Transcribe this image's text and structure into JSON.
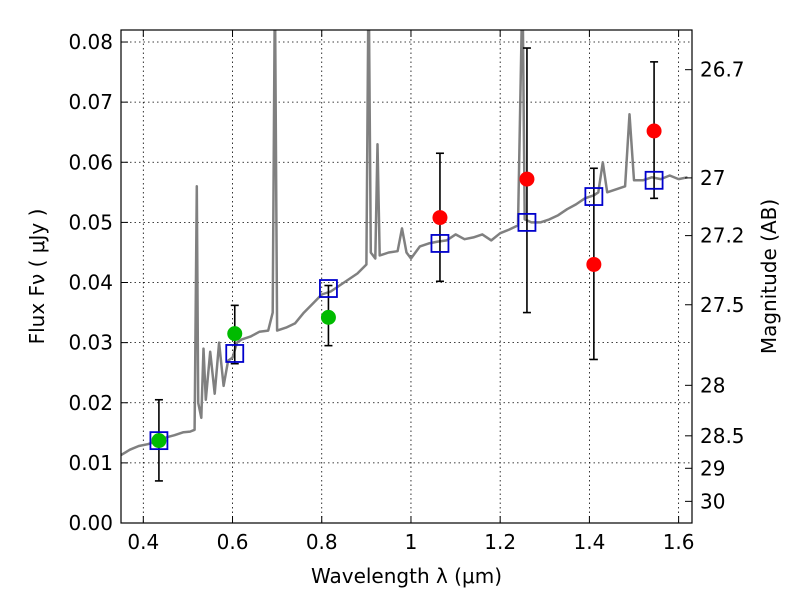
{
  "chart_data": {
    "type": "scatter",
    "title": "",
    "xlabel": "Wavelength  λ (μm)",
    "ylabel": "Flux  Fν  ( μJy )",
    "y2label": "Magnitude (AB)",
    "xlim": [
      0.35,
      1.63
    ],
    "ylim": [
      0.0,
      0.082
    ],
    "grid": true,
    "x_ticks": [
      0.4,
      0.6,
      0.8,
      1.0,
      1.2,
      1.4,
      1.6
    ],
    "x_tick_labels": [
      "0.4",
      "0.6",
      "0.8",
      "1",
      "1.2",
      "1.4",
      "1.6"
    ],
    "y_ticks": [
      0.0,
      0.01,
      0.02,
      0.03,
      0.04,
      0.05,
      0.06,
      0.07,
      0.08
    ],
    "y_tick_labels": [
      "0.00",
      "0.01",
      "0.02",
      "0.03",
      "0.04",
      "0.05",
      "0.06",
      "0.07",
      "0.08"
    ],
    "y2_ticks": [
      {
        "label": "26.7",
        "flux": 0.0754
      },
      {
        "label": "27",
        "flux": 0.0574
      },
      {
        "label": "27.2",
        "flux": 0.0478
      },
      {
        "label": "27.5",
        "flux": 0.0363
      },
      {
        "label": "28",
        "flux": 0.0229
      },
      {
        "label": "28.5",
        "flux": 0.0145
      },
      {
        "label": "29",
        "flux": 0.0091
      },
      {
        "label": "30",
        "flux": 0.0036
      }
    ],
    "colors": {
      "model": "#808080",
      "model_photometry": "#0000cc",
      "detected": "#00bb00",
      "upper_limit_like": "#ff0000",
      "errorbar": "#000000"
    },
    "series": [
      {
        "kind": "line",
        "points": [
          [
            0.35,
            0.0113
          ],
          [
            0.37,
            0.0122
          ],
          [
            0.39,
            0.0128
          ],
          [
            0.41,
            0.0131
          ],
          [
            0.43,
            0.0136
          ],
          [
            0.45,
            0.0142
          ],
          [
            0.47,
            0.0146
          ],
          [
            0.49,
            0.0151
          ],
          [
            0.505,
            0.0152
          ],
          [
            0.515,
            0.0155
          ],
          [
            0.52,
            0.056
          ],
          [
            0.523,
            0.02
          ],
          [
            0.53,
            0.0175
          ],
          [
            0.535,
            0.029
          ],
          [
            0.54,
            0.0205
          ],
          [
            0.55,
            0.0285
          ],
          [
            0.56,
            0.0215
          ],
          [
            0.57,
            0.03
          ],
          [
            0.58,
            0.0228
          ],
          [
            0.59,
            0.027
          ],
          [
            0.6,
            0.0275
          ],
          [
            0.61,
            0.03
          ],
          [
            0.62,
            0.0305
          ],
          [
            0.64,
            0.031
          ],
          [
            0.66,
            0.0318
          ],
          [
            0.68,
            0.032
          ],
          [
            0.69,
            0.035
          ],
          [
            0.695,
            0.09
          ],
          [
            0.7,
            0.032
          ],
          [
            0.72,
            0.0325
          ],
          [
            0.74,
            0.0332
          ],
          [
            0.76,
            0.035
          ],
          [
            0.78,
            0.0365
          ],
          [
            0.8,
            0.038
          ],
          [
            0.82,
            0.0385
          ],
          [
            0.84,
            0.0395
          ],
          [
            0.86,
            0.0405
          ],
          [
            0.88,
            0.0415
          ],
          [
            0.9,
            0.043
          ],
          [
            0.905,
            0.092
          ],
          [
            0.91,
            0.045
          ],
          [
            0.92,
            0.044
          ],
          [
            0.925,
            0.063
          ],
          [
            0.93,
            0.0445
          ],
          [
            0.95,
            0.045
          ],
          [
            0.97,
            0.0452
          ],
          [
            0.98,
            0.049
          ],
          [
            0.99,
            0.045
          ],
          [
            1.0,
            0.044
          ],
          [
            1.02,
            0.046
          ],
          [
            1.04,
            0.0465
          ],
          [
            1.06,
            0.0468
          ],
          [
            1.08,
            0.047
          ],
          [
            1.1,
            0.048
          ],
          [
            1.12,
            0.0472
          ],
          [
            1.14,
            0.0475
          ],
          [
            1.16,
            0.048
          ],
          [
            1.18,
            0.047
          ],
          [
            1.2,
            0.0482
          ],
          [
            1.22,
            0.0488
          ],
          [
            1.24,
            0.0495
          ],
          [
            1.25,
            0.09
          ],
          [
            1.255,
            0.0505
          ],
          [
            1.27,
            0.05
          ],
          [
            1.29,
            0.05
          ],
          [
            1.31,
            0.0505
          ],
          [
            1.33,
            0.0512
          ],
          [
            1.35,
            0.0522
          ],
          [
            1.37,
            0.053
          ],
          [
            1.39,
            0.054
          ],
          [
            1.41,
            0.0545
          ],
          [
            1.42,
            0.055
          ],
          [
            1.43,
            0.06
          ],
          [
            1.44,
            0.055
          ],
          [
            1.46,
            0.0555
          ],
          [
            1.48,
            0.056
          ],
          [
            1.49,
            0.068
          ],
          [
            1.5,
            0.057
          ],
          [
            1.52,
            0.057
          ],
          [
            1.54,
            0.0575
          ],
          [
            1.56,
            0.0572
          ],
          [
            1.58,
            0.0578
          ],
          [
            1.6,
            0.0572
          ],
          [
            1.62,
            0.0575
          ]
        ]
      },
      {
        "kind": "model_photometry",
        "points": [
          [
            0.435,
            0.0137
          ],
          [
            0.605,
            0.0282
          ],
          [
            0.815,
            0.039
          ],
          [
            1.065,
            0.0465
          ],
          [
            1.26,
            0.05
          ],
          [
            1.41,
            0.0543
          ],
          [
            1.545,
            0.057
          ]
        ]
      },
      {
        "kind": "detected",
        "points": [
          [
            0.435,
            0.0137
          ],
          [
            0.605,
            0.0315
          ],
          [
            0.815,
            0.0342
          ]
        ]
      },
      {
        "kind": "upper_limit_like",
        "points": [
          [
            1.065,
            0.0508
          ],
          [
            1.26,
            0.0572
          ],
          [
            1.41,
            0.043
          ],
          [
            1.545,
            0.0652
          ]
        ]
      },
      {
        "kind": "errorbars",
        "bars": [
          [
            0.435,
            0.007,
            0.0205
          ],
          [
            0.605,
            0.0265,
            0.0362
          ],
          [
            0.815,
            0.0295,
            0.0395
          ],
          [
            1.065,
            0.0402,
            0.0615
          ],
          [
            1.26,
            0.035,
            0.079
          ],
          [
            1.41,
            0.0272,
            0.059
          ],
          [
            1.545,
            0.054,
            0.0767
          ]
        ]
      }
    ]
  }
}
